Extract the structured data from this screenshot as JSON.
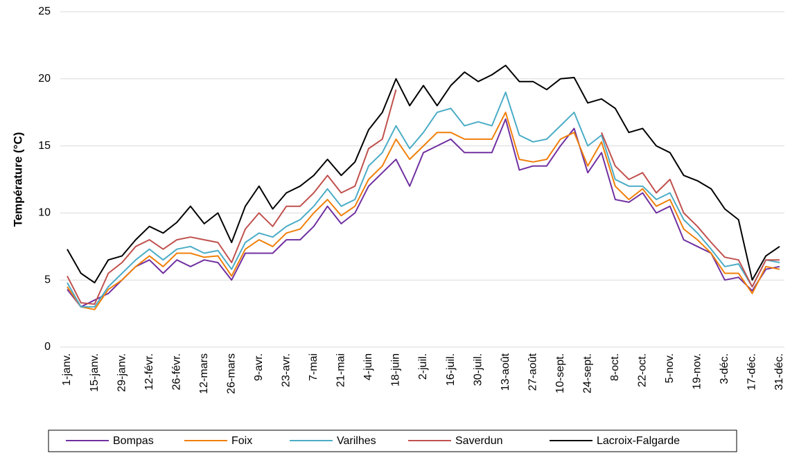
{
  "chart_data": {
    "type": "line",
    "y_label": "Température (°C)",
    "categories": [
      "1-janv.",
      null,
      "15-janv.",
      null,
      "29-janv.",
      null,
      "12-févr.",
      null,
      "26-févr.",
      null,
      "12-mars",
      null,
      "26-mars",
      null,
      "9-avr.",
      null,
      "23-avr.",
      null,
      "7-mai",
      null,
      "21-mai",
      null,
      "4-juin",
      null,
      "18-juin",
      null,
      "2-juil.",
      null,
      "16-juil.",
      null,
      "30-juil.",
      null,
      "13-août",
      null,
      "27-août",
      null,
      "10-sept.",
      null,
      "24-sept.",
      null,
      "8-oct.",
      null,
      "22-oct.",
      null,
      "5-nov.",
      null,
      "19-nov.",
      null,
      "3-déc.",
      null,
      "17-déc.",
      null,
      "31-déc."
    ],
    "series": [
      {
        "name": "Bompas",
        "color": "#7030a0",
        "values": [
          4.3,
          3.0,
          3.5,
          4.0,
          5.0,
          6.0,
          6.5,
          5.5,
          6.5,
          6.0,
          6.5,
          6.3,
          5.0,
          7.0,
          7.0,
          7.0,
          8.0,
          8.0,
          9.0,
          10.5,
          9.2,
          10.0,
          12.0,
          13.0,
          14.0,
          12.0,
          14.5,
          15.0,
          15.5,
          14.5,
          14.5,
          14.5,
          17.0,
          13.2,
          13.5,
          13.5,
          15.0,
          16.3,
          13.0,
          14.5,
          11.0,
          10.8,
          11.5,
          10.0,
          10.5,
          8.0,
          7.5,
          7.0,
          5.0,
          5.2,
          4.2,
          5.8,
          6.0
        ]
      },
      {
        "name": "Foix",
        "color": "#f07f09",
        "values": [
          4.5,
          3.0,
          2.8,
          4.3,
          5.0,
          6.0,
          6.8,
          6.0,
          7.0,
          7.0,
          6.7,
          6.8,
          5.3,
          7.3,
          8.0,
          7.5,
          8.5,
          8.8,
          10.0,
          11.0,
          9.8,
          10.5,
          12.5,
          13.5,
          15.5,
          14.0,
          15.0,
          16.0,
          16.0,
          15.5,
          15.5,
          15.5,
          17.5,
          14.0,
          13.8,
          14.0,
          15.5,
          16.0,
          13.5,
          15.3,
          12.0,
          11.0,
          11.8,
          10.5,
          11.0,
          8.8,
          8.0,
          7.0,
          5.5,
          5.5,
          4.0,
          6.0,
          5.8
        ]
      },
      {
        "name": "Varilhes",
        "color": "#4bacc6",
        "values": [
          4.8,
          3.0,
          3.0,
          4.5,
          5.5,
          6.5,
          7.3,
          6.5,
          7.3,
          7.5,
          7.0,
          7.2,
          5.8,
          7.8,
          8.5,
          8.2,
          9.0,
          9.5,
          10.5,
          11.8,
          10.5,
          11.0,
          13.5,
          14.5,
          16.5,
          14.8,
          16.0,
          17.5,
          17.8,
          16.5,
          16.8,
          16.5,
          19.0,
          15.8,
          15.3,
          15.5,
          16.5,
          17.5,
          15.0,
          15.8,
          12.5,
          12.0,
          12.0,
          11.0,
          11.5,
          9.5,
          8.5,
          7.3,
          6.0,
          6.2,
          4.5,
          6.5,
          6.3
        ]
      },
      {
        "name": "Saverdun",
        "color": "#c0504d",
        "values": [
          5.3,
          3.3,
          3.2,
          5.5,
          6.3,
          7.5,
          8.0,
          7.3,
          8.0,
          8.2,
          8.0,
          7.8,
          6.3,
          8.8,
          10.0,
          9.0,
          10.5,
          10.5,
          11.5,
          12.8,
          11.5,
          12.0,
          14.8,
          15.5,
          19.2,
          null,
          null,
          null,
          null,
          null,
          null,
          null,
          null,
          null,
          null,
          null,
          null,
          null,
          null,
          16.0,
          13.5,
          12.5,
          13.0,
          11.5,
          12.5,
          10.0,
          9.0,
          7.8,
          6.7,
          6.5,
          4.5,
          6.5,
          6.5
        ]
      },
      {
        "name": "Lacroix-Falgarde",
        "color": "#000000",
        "values": [
          7.3,
          5.5,
          4.8,
          6.5,
          6.8,
          8.0,
          9.0,
          8.5,
          9.3,
          10.5,
          9.2,
          10.0,
          7.8,
          10.5,
          12.0,
          10.3,
          11.5,
          12.0,
          12.8,
          14.0,
          12.8,
          13.8,
          16.2,
          17.5,
          20.0,
          18.0,
          19.5,
          18.0,
          19.5,
          20.5,
          19.8,
          20.3,
          21.0,
          19.8,
          19.8,
          19.2,
          20.0,
          20.1,
          18.2,
          18.5,
          17.8,
          16.0,
          16.3,
          15.0,
          14.5,
          12.8,
          12.4,
          11.8,
          10.3,
          9.5,
          5.0,
          6.8,
          7.5
        ]
      }
    ],
    "ylim": [
      0,
      25
    ],
    "yticks": [
      0,
      5,
      10,
      15,
      20,
      25
    ],
    "grid": true,
    "legend": "bottom"
  }
}
